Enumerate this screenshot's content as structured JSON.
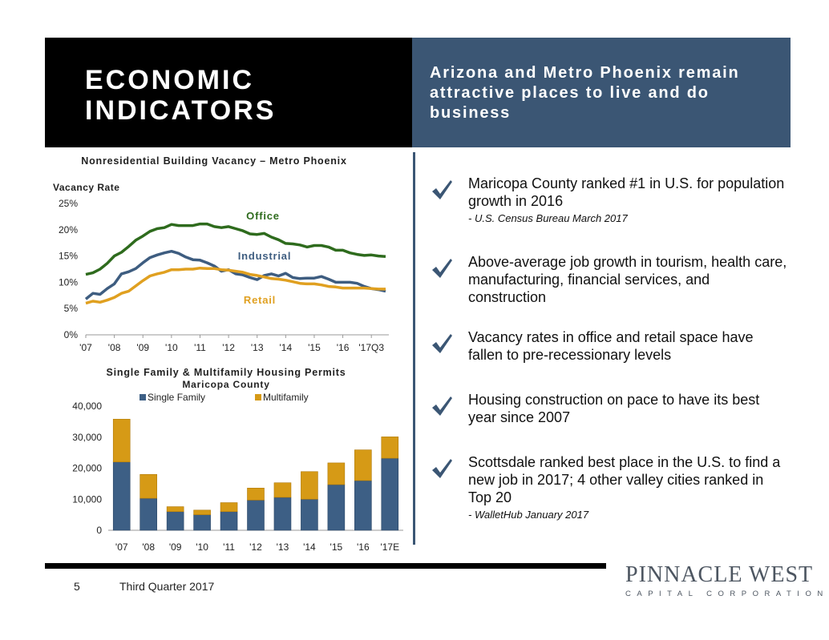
{
  "header": {
    "title_line1": "ECONOMIC",
    "title_line2": "INDICATORS",
    "subtitle": "Arizona and Metro Phoenix remain attractive places to live and do business"
  },
  "bullets": [
    {
      "text": "Maricopa County ranked #1 in U.S. for population growth in 2016",
      "source": "- U.S. Census Bureau March 2017"
    },
    {
      "text": "Above-average job growth in tourism, health care, manufacturing, financial services, and construction",
      "source": ""
    },
    {
      "text": "Vacancy rates in office and retail space have fallen to pre-recessionary levels",
      "source": ""
    },
    {
      "text": "Housing construction on pace to have its best year since 2007",
      "source": ""
    },
    {
      "text": "Scottsdale ranked best place in the U.S. to find a new job in 2017; 4 other valley cities ranked in Top 20",
      "source": "- WalletHub January 2017"
    }
  ],
  "footer": {
    "page_number": "5",
    "quarter": "Third Quarter 2017"
  },
  "logo": {
    "main": "PINNACLE WEST",
    "sub": "CAPITAL CORPORATION"
  },
  "colors": {
    "header_dark": "#000000",
    "header_blue": "#3b5674",
    "office": "#2e6b1d",
    "industrial": "#3e5d80",
    "retail": "#e0a020",
    "single_family": "#3d5f85",
    "multifamily": "#d69a16",
    "check": "#3b5674"
  },
  "chart_data": [
    {
      "type": "line",
      "title": "Nonresidential Building Vacancy – Metro Phoenix",
      "ylabel": "Vacancy Rate",
      "ylim": [
        0,
        25
      ],
      "yticks": [
        "0%",
        "5%",
        "10%",
        "15%",
        "20%",
        "25%"
      ],
      "x_tick_labels": [
        "'07",
        "'08",
        "'09",
        "'10",
        "'11",
        "'12",
        "'13",
        "'14",
        "'15",
        "'16",
        "'17Q3"
      ],
      "points_per_year": 4,
      "series": [
        {
          "name": "Office",
          "values": [
            11.5,
            11.8,
            12.5,
            13.6,
            15.0,
            15.7,
            16.8,
            18.0,
            18.8,
            19.7,
            20.2,
            20.4,
            21.0,
            20.8,
            20.8,
            20.8,
            21.1,
            21.1,
            20.6,
            20.4,
            20.6,
            20.2,
            19.8,
            19.2,
            19.1,
            19.3,
            18.6,
            18.1,
            17.4,
            17.3,
            17.1,
            16.7,
            17.0,
            17.0,
            16.7,
            16.1,
            16.1,
            15.6,
            15.3,
            15.1,
            15.2,
            15.0,
            14.9
          ]
        },
        {
          "name": "Industrial",
          "values": [
            6.8,
            7.9,
            7.7,
            8.8,
            9.7,
            11.6,
            12.0,
            12.6,
            13.7,
            14.7,
            15.2,
            15.6,
            15.9,
            15.5,
            14.8,
            14.3,
            14.2,
            13.7,
            13.1,
            12.1,
            12.4,
            11.6,
            11.4,
            10.9,
            10.5,
            11.3,
            11.6,
            11.2,
            11.7,
            10.9,
            10.7,
            10.8,
            10.8,
            11.1,
            10.6,
            10.0,
            10.0,
            10.0,
            9.8,
            9.2,
            8.8,
            8.6,
            8.3
          ]
        },
        {
          "name": "Retail",
          "values": [
            6.0,
            6.4,
            6.2,
            6.6,
            7.1,
            7.9,
            8.3,
            9.3,
            10.3,
            11.2,
            11.6,
            11.9,
            12.4,
            12.4,
            12.5,
            12.5,
            12.7,
            12.6,
            12.6,
            12.4,
            12.3,
            12.1,
            11.9,
            11.5,
            11.3,
            11.0,
            10.7,
            10.6,
            10.4,
            10.1,
            9.8,
            9.7,
            9.7,
            9.5,
            9.2,
            9.1,
            8.9,
            8.9,
            8.9,
            8.9,
            8.8,
            8.7,
            8.7
          ]
        }
      ]
    },
    {
      "type": "bar",
      "stacked": true,
      "title": "Single Family & Multifamily Housing Permits",
      "subtitle": "Maricopa County",
      "ylim": [
        0,
        40000
      ],
      "yticks": [
        "0",
        "10,000",
        "20,000",
        "30,000",
        "40,000"
      ],
      "categories": [
        "'07",
        "'08",
        "'09",
        "'10",
        "'11",
        "'12",
        "'13",
        "'14",
        "'15",
        "'16",
        "'17E"
      ],
      "legend": "top",
      "series": [
        {
          "name": "Single Family",
          "values": [
            22000,
            10300,
            6000,
            5000,
            6000,
            9700,
            10600,
            10000,
            14700,
            16000,
            23200
          ]
        },
        {
          "name": "Multifamily",
          "values": [
            13800,
            7700,
            1600,
            1500,
            2900,
            3900,
            4700,
            8900,
            7000,
            9900,
            6900
          ]
        }
      ]
    }
  ]
}
